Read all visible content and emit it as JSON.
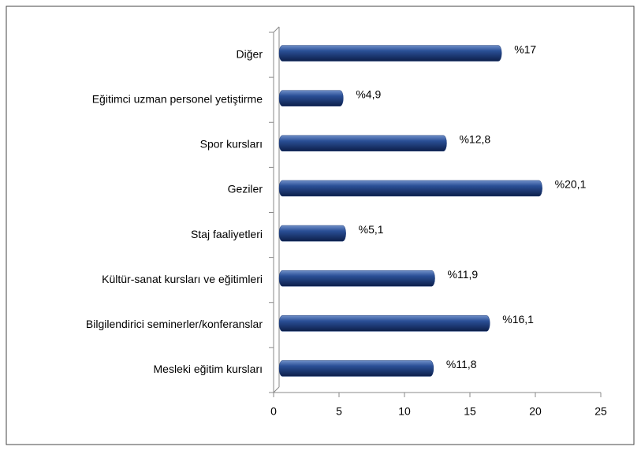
{
  "chart_data": {
    "type": "bar",
    "orientation": "horizontal",
    "categories": [
      "Diğer",
      "Eğitimci uzman personel yetiştirme",
      "Spor kursları",
      "Geziler",
      "Staj faaliyetleri",
      "Kültür-sanat kursları ve eğitimleri",
      "Bilgilendirici seminerler/konferanslar",
      "Mesleki eğitim kursları"
    ],
    "values": [
      17,
      4.9,
      12.8,
      20.1,
      5.1,
      11.9,
      16.1,
      11.8
    ],
    "value_labels": [
      "%17",
      "%4,9",
      "%12,8",
      "%20,1",
      "%5,1",
      "%11,9",
      "%16,1",
      "%11,8"
    ],
    "color": "#1f3d7a",
    "xlim": [
      0,
      25
    ],
    "xticks": [
      0,
      5,
      10,
      15,
      20,
      25
    ]
  }
}
